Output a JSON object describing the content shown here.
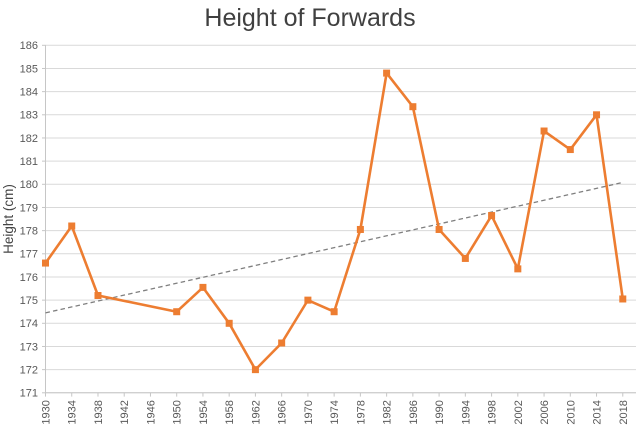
{
  "chart_data": {
    "type": "line",
    "title": "Height of Forwards",
    "xlabel": "",
    "ylabel": "Height (cm)",
    "categories": [
      "1930",
      "1934",
      "1938",
      "1942",
      "1946",
      "1950",
      "1954",
      "1958",
      "1962",
      "1966",
      "1970",
      "1974",
      "1978",
      "1982",
      "1986",
      "1990",
      "1994",
      "1998",
      "2002",
      "2006",
      "2010",
      "2014",
      "2018"
    ],
    "series": [
      {
        "name": "Height of Forwards",
        "values": [
          176.6,
          178.2,
          175.2,
          null,
          null,
          174.5,
          175.55,
          174.0,
          172.0,
          173.15,
          175.0,
          174.5,
          178.05,
          184.8,
          183.35,
          178.05,
          176.8,
          178.65,
          176.35,
          182.3,
          181.5,
          183.0,
          175.05
        ]
      }
    ],
    "trendline": {
      "type": "linear",
      "start_value": 174.45,
      "end_value": 180.08,
      "style": "dashed"
    },
    "ylim": [
      171,
      186
    ],
    "ytick_step": 1,
    "grid": "horizontal",
    "legend": "none",
    "colors": {
      "series": "#ED7D31",
      "trendline": "#7F7F7F",
      "gridline": "#D9D9D9",
      "axis_line": "#C6C6C6",
      "title_text": "#404040",
      "axis_text": "#595959",
      "background": "#FFFFFF"
    }
  }
}
